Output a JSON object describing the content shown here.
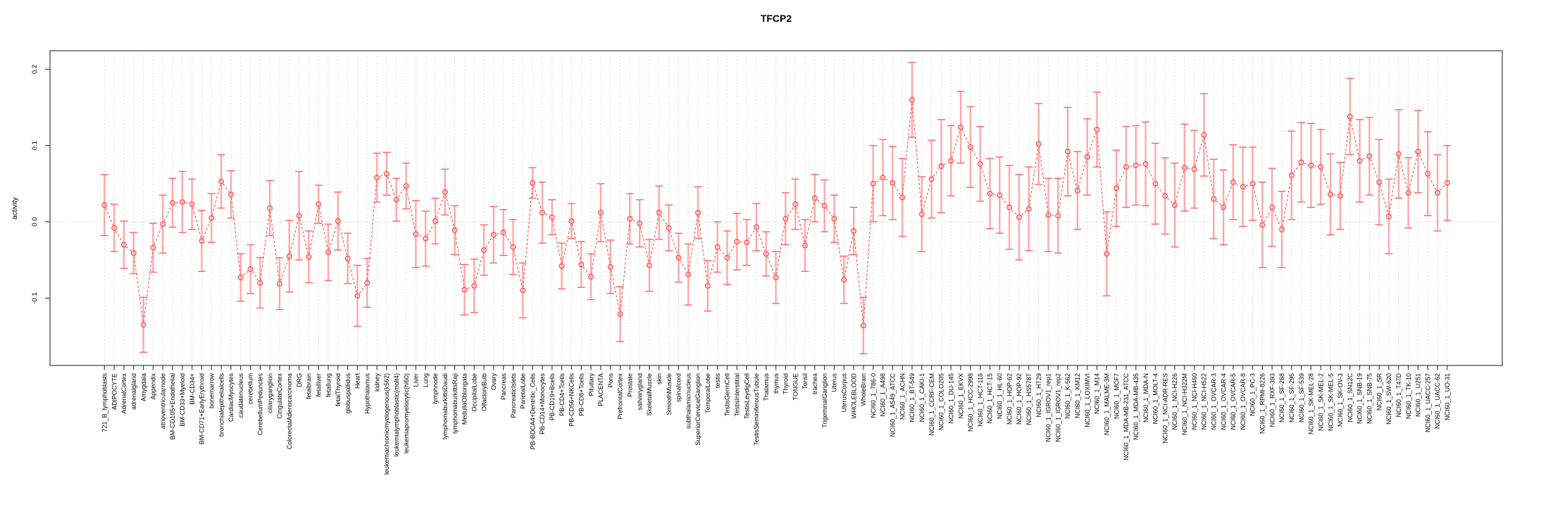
{
  "title": "TFCP2",
  "y_axis": {
    "label": "activity",
    "tick_labels": [
      "0.2",
      "0.1",
      "0.0",
      "-0.1"
    ],
    "tick_values": [
      0.2,
      0.1,
      0.0,
      -0.1
    ]
  },
  "colors": {
    "point": "#ff5252",
    "segment": "#ff5252",
    "error_bar_shaft": "#ff9e9e",
    "error_bar_cap": "#ff6262",
    "grid_line": "#dcdcdc",
    "zero_line": "#cfcfcf",
    "plot_border": "#8a8a8a",
    "tick": "#404040",
    "label_text": "#000000",
    "background": "#ffffff"
  },
  "chart_data": {
    "type": "line",
    "title": "TFCP2",
    "xlabel": "",
    "ylabel": "activity",
    "ylim": [
      -0.185,
      0.225
    ],
    "yticks": [
      -0.1,
      0.0,
      0.1,
      0.2
    ],
    "grid": "vertical dashed line at every category; dotted horizontal line at 0",
    "legend": "none",
    "marker": "open-circle",
    "line_style": "dashed",
    "error_bars": true,
    "categories": [
      "721_B_lymphoblasts",
      "ADIPOCYTE",
      "AdrenalCortex",
      "adrenalgland",
      "Amygdala",
      "Appendix",
      "atrioventricularnode",
      "BM-CD105+Endothelial",
      "BM-CD33+Myeloid",
      "BM-CD34+",
      "BM-CD71+EarlyErythroid",
      "bonemarrow",
      "bronchialepithelialcells",
      "CardiacMyocytes",
      "caudatenucleus",
      "cerebellum",
      "CerebellumPeduncles",
      "ciliaryganglion",
      "CingulateCortex",
      "ColorectalAdenocarcinoma",
      "DRG",
      "fetalbrain",
      "fetalliver",
      "fetallung",
      "fetalThyroid",
      "globuspallidus",
      "Heart",
      "Hypothalamus",
      "kidney",
      "leukemiachronicmyelogenous(k562)",
      "leukemialymphoblastic(molt4)",
      "leukemiapromyelocytic(hl60)",
      "Liver",
      "Lung",
      "lymphnode",
      "lymphomaburkittsDaudi",
      "lymphomaburkittsRaji",
      "MedullaOblongata",
      "OccipitalLobe",
      "OlfactoryBulb",
      "Ovary",
      "Pancreas",
      "PancreaticIslets",
      "ParietalLobe",
      "PB-BDCA4+Dentritic_Cells",
      "PB-CD14+Monocytes",
      "PB-CD19+Bcells",
      "PB-CD4+Tcells",
      "PB-CD56+NKCells",
      "PB-CD8+Tcells",
      "Pituitary",
      "PLACENTA",
      "Pons",
      "PrefrontalCortex",
      "Prostate",
      "salivarygland",
      "SkeletalMuscle",
      "skin",
      "SmoothMuscle",
      "spinalcord",
      "subthalamicnucleus",
      "SuperiorCervicalGanglion",
      "TemporalLobe",
      "testis",
      "TestisGermCell",
      "TestisInterstitial",
      "TestisLeydigCell",
      "TestisSeminiferousTubule",
      "Thalamus",
      "thymus",
      "Thyroid",
      "TONGUE",
      "Tonsil",
      "trachea",
      "TrigeminalGanglion",
      "Uterus",
      "UterusCorpus",
      "WHOLEBLOOD",
      "WholeBrain",
      "NCI60_1_786-0",
      "NCI60_1_A498",
      "NCI60_1_A549_ATCC",
      "NCI60_1_ACHN",
      "NCI60_1_BT-549",
      "NCI60_1_CAKI-1",
      "NCI60_1_CCRF-CEM",
      "NCI60_1_COLO205",
      "NCI60_1_DU-145",
      "NCI60_1_EKVX",
      "NCI60_1_HCC-2998",
      "NCI60_1_HCT-116",
      "NCI60_1_HCT-15",
      "NCI60_1_HL-60",
      "NCI60_1_HOP-62",
      "NCI60_1_HOP-92",
      "NCI60_1_HS578T",
      "NCI60_1_HT29",
      "NCI60_1_IGROV1_rep1",
      "NCI60_1_IGROV1_rep2",
      "NCI60_1_K-562",
      "NCI60_1_KM12",
      "NCI60_1_LOXIMVI",
      "NCI60_1_M14",
      "NCI60_1_MALME-3M",
      "NCI60_1_MCF7",
      "NCI60_1_MDA-MB-231_ATCC",
      "NCI60_1_MDA-MB-435",
      "NCI60_1_MDA-N",
      "NCI60_1_MOLT-4",
      "NCI60_1_NCI-ADR-RES",
      "NCI60_1_NCI-H226",
      "NCI60_1_NCI-H322M",
      "NCI60_1_NCI-H460",
      "NCI60_1_NCI-H522",
      "NCI60_1_OVCAR-3",
      "NCI60_1_OVCAR-4",
      "NCI60_1_OVCAR-5",
      "NCI60_1_OVCAR-8",
      "NCI60_1_PC-3",
      "NCI60_1_RPMI-8226",
      "NCI60_1_RXF-393",
      "NCI60_1_SF-268",
      "NCI60_1_SF-295",
      "NCI60_1_SF-539",
      "NCI60_1_SK-MEL-28",
      "NCI60_1_SK-MEL-2",
      "NCI60_1_SK-MEL-5",
      "NCI60_1_SK-OV-3",
      "NCI60_1_SN12C",
      "NCI60_1_SNB-19",
      "NCI60_1_SNB-75",
      "NCI60_1_SR",
      "NCI60_1_SW-620",
      "NCI60_1_T47D",
      "NCI60_1_TK-10",
      "NCI60_1_U251",
      "NCI60_1_UACC-257",
      "NCI60_1_UACC-62",
      "NCI60_1_UO-31"
    ],
    "series": [
      {
        "name": "activity",
        "values": [
          0.022,
          -0.008,
          -0.03,
          -0.041,
          -0.135,
          -0.034,
          -0.003,
          0.025,
          0.026,
          0.023,
          -0.025,
          0.005,
          0.053,
          0.036,
          -0.073,
          -0.062,
          -0.08,
          0.018,
          -0.081,
          -0.045,
          0.008,
          -0.046,
          0.023,
          -0.04,
          0.001,
          -0.048,
          -0.097,
          -0.08,
          0.058,
          0.063,
          0.029,
          0.047,
          -0.016,
          -0.022,
          0.001,
          0.039,
          -0.011,
          -0.089,
          -0.084,
          -0.037,
          -0.017,
          -0.014,
          -0.033,
          -0.09,
          0.051,
          0.012,
          0.006,
          -0.058,
          0.001,
          -0.056,
          -0.072,
          0.012,
          -0.059,
          -0.121,
          0.004,
          -0.002,
          -0.057,
          0.012,
          -0.008,
          -0.047,
          -0.069,
          0.012,
          -0.084,
          -0.033,
          -0.047,
          -0.026,
          -0.027,
          -0.007,
          -0.042,
          -0.073,
          0.004,
          0.023,
          -0.031,
          0.031,
          0.021,
          0.004,
          -0.076,
          -0.012,
          -0.136,
          0.05,
          0.058,
          0.051,
          0.032,
          0.16,
          0.01,
          0.056,
          0.073,
          0.08,
          0.124,
          0.098,
          0.076,
          0.037,
          0.035,
          0.019,
          0.006,
          0.017,
          0.102,
          0.009,
          0.008,
          0.092,
          0.041,
          0.085,
          0.121,
          -0.042,
          0.044,
          0.072,
          0.074,
          0.076,
          0.05,
          0.034,
          0.022,
          0.071,
          0.069,
          0.114,
          0.03,
          0.019,
          0.052,
          0.046,
          0.05,
          -0.004,
          0.019,
          -0.01,
          0.061,
          0.078,
          0.074,
          0.072,
          0.036,
          0.034,
          0.138,
          0.08,
          0.086,
          0.052,
          0.007,
          0.089,
          0.038,
          0.092,
          0.063,
          0.038,
          0.051
        ],
        "errors": [
          0.04,
          0.031,
          0.031,
          0.027,
          0.036,
          0.032,
          0.038,
          0.032,
          0.04,
          0.033,
          0.04,
          0.032,
          0.035,
          0.031,
          0.031,
          0.032,
          0.033,
          0.036,
          0.034,
          0.047,
          0.058,
          0.034,
          0.025,
          0.037,
          0.038,
          0.033,
          0.04,
          0.032,
          0.032,
          0.028,
          0.028,
          0.03,
          0.044,
          0.036,
          0.03,
          0.03,
          0.032,
          0.033,
          0.035,
          0.033,
          0.037,
          0.03,
          0.036,
          0.036,
          0.02,
          0.04,
          0.023,
          0.03,
          0.023,
          0.03,
          0.03,
          0.038,
          0.035,
          0.036,
          0.033,
          0.031,
          0.034,
          0.035,
          0.03,
          0.032,
          0.04,
          0.034,
          0.033,
          0.033,
          0.035,
          0.037,
          0.03,
          0.031,
          0.029,
          0.034,
          0.034,
          0.033,
          0.034,
          0.031,
          0.034,
          0.031,
          0.031,
          0.031,
          0.037,
          0.05,
          0.05,
          0.048,
          0.051,
          0.049,
          0.049,
          0.051,
          0.061,
          0.046,
          0.047,
          0.053,
          0.049,
          0.046,
          0.05,
          0.055,
          0.056,
          0.055,
          0.053,
          0.048,
          0.049,
          0.058,
          0.051,
          0.05,
          0.049,
          0.055,
          0.05,
          0.053,
          0.052,
          0.055,
          0.053,
          0.05,
          0.055,
          0.057,
          0.051,
          0.054,
          0.052,
          0.049,
          0.049,
          0.052,
          0.048,
          0.056,
          0.051,
          0.05,
          0.058,
          0.052,
          0.055,
          0.049,
          0.053,
          0.044,
          0.05,
          0.054,
          0.051,
          0.056,
          0.049,
          0.058,
          0.046,
          0.054,
          0.055,
          0.05,
          0.049
        ]
      }
    ]
  }
}
